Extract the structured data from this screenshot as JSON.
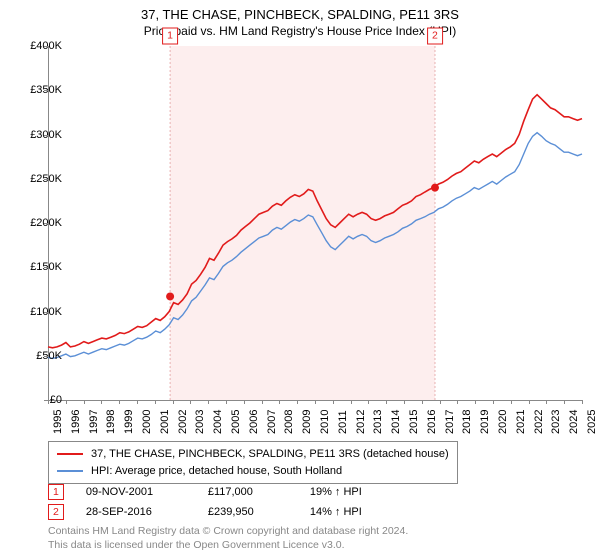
{
  "title_line1": "37, THE CHASE, PINCHBECK, SPALDING, PE11 3RS",
  "title_line2": "Price paid vs. HM Land Registry's House Price Index (HPI)",
  "chart": {
    "type": "line",
    "background_color": "#ffffff",
    "shaded_region_color": "#fdeeee",
    "shaded_border_color": "#e9b0b0",
    "axis_color": "#888888",
    "ylim": [
      0,
      400000
    ],
    "ytick_step": 50000,
    "yticks": [
      "£0",
      "£50K",
      "£100K",
      "£150K",
      "£200K",
      "£250K",
      "£300K",
      "£350K",
      "£400K"
    ],
    "xstart": 1995,
    "xend": 2025,
    "xticks": [
      "1995",
      "1996",
      "1997",
      "1998",
      "1999",
      "2000",
      "2001",
      "2002",
      "2003",
      "2004",
      "2005",
      "2006",
      "2007",
      "2008",
      "2009",
      "2010",
      "2011",
      "2012",
      "2013",
      "2014",
      "2015",
      "2016",
      "2017",
      "2018",
      "2019",
      "2020",
      "2021",
      "2022",
      "2023",
      "2024",
      "2025"
    ],
    "series": [
      {
        "name": "37, THE CHASE, PINCHBECK, SPALDING, PE11 3RS (detached house)",
        "color": "#e11b1b",
        "line_width": 1.6,
        "values": [
          60000,
          59000,
          60000,
          62000,
          65000,
          60000,
          61000,
          63000,
          66000,
          64000,
          66000,
          68000,
          70000,
          69000,
          71000,
          73000,
          76000,
          75000,
          77000,
          80000,
          83000,
          82000,
          84000,
          88000,
          92000,
          90000,
          94000,
          100000,
          110000,
          108000,
          113000,
          120000,
          131000,
          135000,
          142000,
          150000,
          160000,
          158000,
          166000,
          175000,
          179000,
          182000,
          186000,
          192000,
          196000,
          200000,
          205000,
          210000,
          212000,
          214000,
          219000,
          222000,
          220000,
          225000,
          229000,
          232000,
          230000,
          233000,
          238000,
          236000,
          225000,
          215000,
          205000,
          198000,
          195000,
          200000,
          205000,
          210000,
          207000,
          210000,
          212000,
          210000,
          205000,
          203000,
          205000,
          208000,
          210000,
          212000,
          216000,
          220000,
          222000,
          225000,
          230000,
          232000,
          235000,
          238000,
          240000,
          244000,
          246000,
          249000,
          253000,
          256000,
          258000,
          262000,
          266000,
          270000,
          268000,
          272000,
          275000,
          278000,
          275000,
          279000,
          283000,
          286000,
          290000,
          300000,
          315000,
          328000,
          340000,
          345000,
          340000,
          335000,
          330000,
          328000,
          324000,
          320000,
          320000,
          318000,
          316000,
          318000
        ]
      },
      {
        "name": "HPI: Average price, detached house, South Holland",
        "color": "#5b8fd6",
        "line_width": 1.4,
        "values": [
          48000,
          47000,
          48000,
          50000,
          52000,
          49000,
          50000,
          52000,
          54000,
          52000,
          54000,
          56000,
          58000,
          57000,
          59000,
          61000,
          63000,
          62000,
          64000,
          67000,
          70000,
          69000,
          71000,
          74000,
          78000,
          76000,
          80000,
          85000,
          93000,
          91000,
          96000,
          103000,
          112000,
          116000,
          123000,
          130000,
          138000,
          136000,
          143000,
          151000,
          155000,
          158000,
          162000,
          167000,
          171000,
          175000,
          179000,
          183000,
          185000,
          187000,
          192000,
          195000,
          193000,
          197000,
          201000,
          204000,
          202000,
          205000,
          209000,
          207000,
          198000,
          189000,
          180000,
          173000,
          170000,
          175000,
          180000,
          185000,
          182000,
          185000,
          187000,
          185000,
          180000,
          178000,
          180000,
          183000,
          185000,
          187000,
          190000,
          194000,
          196000,
          199000,
          203000,
          205000,
          207000,
          210000,
          212000,
          216000,
          218000,
          221000,
          225000,
          228000,
          230000,
          233000,
          236000,
          240000,
          238000,
          241000,
          244000,
          247000,
          244000,
          248000,
          252000,
          255000,
          258000,
          266000,
          278000,
          290000,
          298000,
          302000,
          298000,
          293000,
          290000,
          288000,
          284000,
          280000,
          280000,
          278000,
          276000,
          278000
        ]
      }
    ],
    "transactions": [
      {
        "label": "1",
        "x_year": 2001.86,
        "y_value": 117000
      },
      {
        "label": "2",
        "x_year": 2016.74,
        "y_value": 239950
      }
    ],
    "marker_dot_color": "#e11b1b",
    "marker_dot_radius": 4
  },
  "legend": {
    "items": [
      {
        "label": "37, THE CHASE, PINCHBECK, SPALDING, PE11 3RS (detached house)",
        "color": "#e11b1b"
      },
      {
        "label": "HPI: Average price, detached house, South Holland",
        "color": "#5b8fd6"
      }
    ]
  },
  "trans_table": [
    {
      "marker": "1",
      "date": "09-NOV-2001",
      "price": "£117,000",
      "pct": "19% ↑ HPI"
    },
    {
      "marker": "2",
      "date": "28-SEP-2016",
      "price": "£239,950",
      "pct": "14% ↑ HPI"
    }
  ],
  "footnote_line1": "Contains HM Land Registry data © Crown copyright and database right 2024.",
  "footnote_line2": "This data is licensed under the Open Government Licence v3.0."
}
